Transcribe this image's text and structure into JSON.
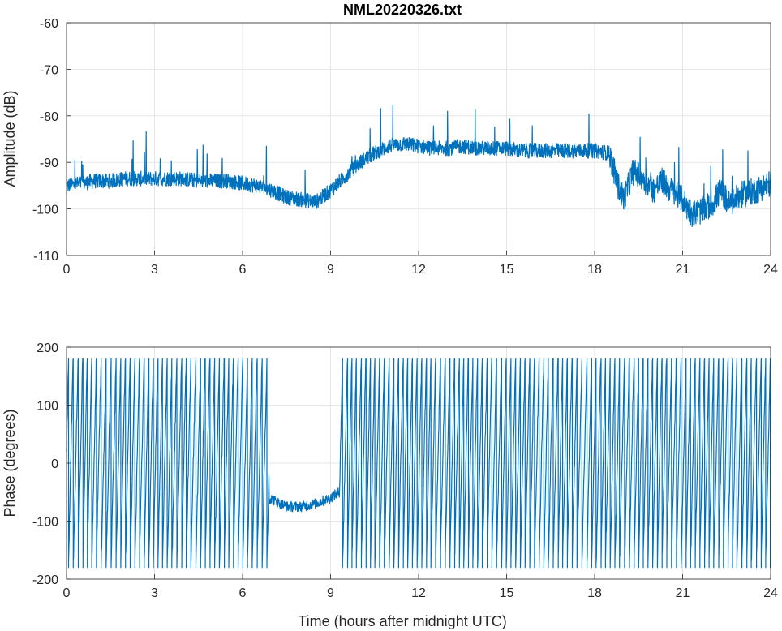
{
  "figure_title": "NML20220326.txt",
  "chart_data": [
    {
      "type": "line",
      "title": "NML20220326.txt",
      "xlabel": "",
      "ylabel": "Amplitude (dB)",
      "xlim": [
        0,
        24
      ],
      "ylim": [
        -110,
        -60
      ],
      "xticks": [
        0,
        3,
        6,
        9,
        12,
        15,
        18,
        21,
        24
      ],
      "yticks": [
        -110,
        -100,
        -90,
        -80,
        -70,
        -60
      ],
      "grid": true,
      "line_color": "#0072BD",
      "series": [
        {
          "x": [
            0,
            0.5,
            1,
            1.5,
            2,
            2.5,
            3,
            3.5,
            4,
            4.5,
            5,
            5.5,
            6,
            6.5,
            7,
            7.5,
            8,
            8.5,
            9,
            9.5,
            10,
            10.5,
            11,
            11.5,
            12,
            12.5,
            13,
            13.5,
            14,
            14.5,
            15,
            15.5,
            16,
            16.5,
            17,
            17.5,
            18,
            18.5,
            18.8,
            19,
            19.3,
            19.6,
            20,
            20.3,
            20.6,
            21,
            21.3,
            21.6,
            22,
            22.3,
            22.6,
            23,
            23.5,
            24
          ],
          "y": [
            -95,
            -94.5,
            -94,
            -94,
            -93.5,
            -93.5,
            -93.5,
            -93.5,
            -93.5,
            -94,
            -94,
            -94,
            -94.5,
            -95,
            -96,
            -97.5,
            -98,
            -98.5,
            -96,
            -93,
            -90,
            -88,
            -86.5,
            -86,
            -86.5,
            -87,
            -87,
            -86.5,
            -87,
            -87,
            -87,
            -87.5,
            -87.5,
            -87.5,
            -87.5,
            -87.5,
            -87.5,
            -88,
            -95,
            -98,
            -92,
            -93,
            -96,
            -94,
            -96,
            -98,
            -101,
            -100.5,
            -99,
            -96,
            -99,
            -97,
            -96,
            -94.5
          ]
        }
      ]
    },
    {
      "type": "line",
      "title": "",
      "xlabel": "Time (hours after midnight UTC)",
      "ylabel": "Phase (degrees)",
      "xlim": [
        0,
        24
      ],
      "ylim": [
        -200,
        200
      ],
      "xticks": [
        0,
        3,
        6,
        9,
        12,
        15,
        18,
        21,
        24
      ],
      "yticks": [
        -200,
        -100,
        0,
        100,
        200
      ],
      "grid": true,
      "line_color": "#0072BD",
      "series": [
        {
          "x": [
            0,
            6.9,
            7.5,
            8,
            8.5,
            9,
            9.3,
            24
          ],
          "y": [
            0,
            -60,
            -75,
            -75,
            -70,
            -60,
            -50,
            0
          ]
        }
      ]
    }
  ]
}
